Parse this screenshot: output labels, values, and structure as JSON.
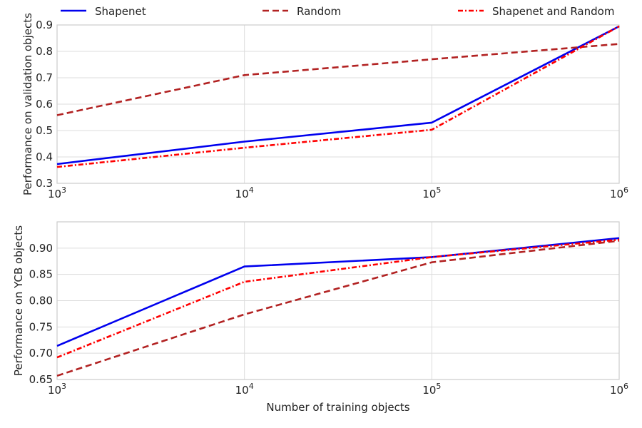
{
  "chart_data": [
    {
      "type": "line",
      "x": [
        1000,
        10000,
        100000,
        1000000
      ],
      "x_scale": "log",
      "xlim": [
        1000,
        1000000
      ],
      "ylim": [
        0.3,
        0.9
      ],
      "ylabel": "Performance on validation objects",
      "xlabel": "",
      "yticks": [
        "0.3",
        "0.4",
        "0.5",
        "0.6",
        "0.7",
        "0.8",
        "0.9"
      ],
      "grid": true,
      "series": [
        {
          "name": "Shapenet",
          "values": [
            0.373,
            0.458,
            0.53,
            0.895
          ]
        },
        {
          "name": "Random",
          "values": [
            0.558,
            0.71,
            0.77,
            0.828
          ]
        },
        {
          "name": "Shapenet and Random",
          "values": [
            0.362,
            0.435,
            0.503,
            0.895
          ]
        }
      ]
    },
    {
      "type": "line",
      "x": [
        1000,
        10000,
        100000,
        1000000
      ],
      "x_scale": "log",
      "xlim": [
        1000,
        1000000
      ],
      "ylim": [
        0.65,
        0.95
      ],
      "ylabel": "Performance on YCB objects",
      "xlabel": "Number of training objects",
      "yticks": [
        "0.65",
        "0.70",
        "0.75",
        "0.80",
        "0.85",
        "0.90"
      ],
      "grid": true,
      "series": [
        {
          "name": "Shapenet",
          "values": [
            0.714,
            0.865,
            0.883,
            0.919
          ]
        },
        {
          "name": "Random",
          "values": [
            0.657,
            0.774,
            0.873,
            0.914
          ]
        },
        {
          "name": "Shapenet and Random",
          "values": [
            0.692,
            0.836,
            0.883,
            0.916
          ]
        }
      ]
    }
  ],
  "legend": {
    "placement": "top",
    "items": [
      {
        "name": "Shapenet",
        "color": "#0000ee",
        "style": "solid"
      },
      {
        "name": "Random",
        "color": "#b22222",
        "style": "dashed"
      },
      {
        "name": "Shapenet and Random",
        "color": "#ff0000",
        "style": "dashdot"
      }
    ]
  },
  "x_tick_labels": [
    {
      "base": "10",
      "exp": "3"
    },
    {
      "base": "10",
      "exp": "4"
    },
    {
      "base": "10",
      "exp": "5"
    },
    {
      "base": "10",
      "exp": "6"
    }
  ]
}
